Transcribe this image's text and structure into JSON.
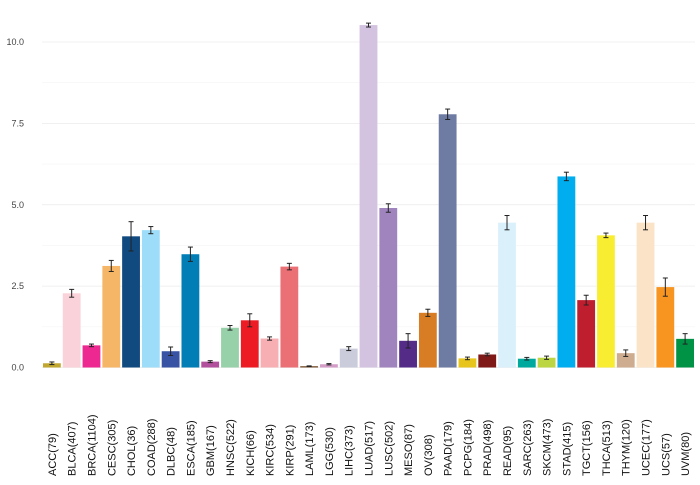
{
  "chart_data": {
    "type": "bar",
    "title": "",
    "xlabel": "",
    "ylabel": "",
    "ylim": [
      0,
      10.8
    ],
    "yticks": [
      0.0,
      2.5,
      5.0,
      7.5,
      10.0
    ],
    "ytick_labels": [
      "0.0",
      "2.5",
      "5.0",
      "7.5",
      "10.0"
    ],
    "grid": true,
    "legend": "none",
    "error_bars": true,
    "bars": [
      {
        "category": "ACC(79)",
        "value": 0.13,
        "err": 0.04,
        "color": "#C1A72F"
      },
      {
        "category": "BLCA(407)",
        "value": 2.28,
        "err": 0.12,
        "color": "#FAD2D9"
      },
      {
        "category": "BRCA(1104)",
        "value": 0.68,
        "err": 0.04,
        "color": "#ED2891"
      },
      {
        "category": "CESC(305)",
        "value": 3.12,
        "err": 0.17,
        "color": "#F6B667"
      },
      {
        "category": "CHOL(36)",
        "value": 4.03,
        "err": 0.45,
        "color": "#104A7F"
      },
      {
        "category": "COAD(288)",
        "value": 4.22,
        "err": 0.11,
        "color": "#9EDDF9"
      },
      {
        "category": "DLBC(48)",
        "value": 0.5,
        "err": 0.13,
        "color": "#3953A4"
      },
      {
        "category": "ESCA(185)",
        "value": 3.48,
        "err": 0.22,
        "color": "#007EB5"
      },
      {
        "category": "GBM(167)",
        "value": 0.18,
        "err": 0.03,
        "color": "#B2509E"
      },
      {
        "category": "HNSC(522)",
        "value": 1.22,
        "err": 0.07,
        "color": "#97D1A9"
      },
      {
        "category": "KICH(66)",
        "value": 1.45,
        "err": 0.2,
        "color": "#ED1C24"
      },
      {
        "category": "KIRC(534)",
        "value": 0.89,
        "err": 0.05,
        "color": "#F8AFB3"
      },
      {
        "category": "KIRP(291)",
        "value": 3.1,
        "err": 0.1,
        "color": "#EA7075"
      },
      {
        "category": "LAML(173)",
        "value": 0.04,
        "err": 0.01,
        "color": "#754C29"
      },
      {
        "category": "LGG(530)",
        "value": 0.1,
        "err": 0.02,
        "color": "#D49DC7"
      },
      {
        "category": "LIHC(373)",
        "value": 0.58,
        "err": 0.06,
        "color": "#CACCDB"
      },
      {
        "category": "LUAD(517)",
        "value": 10.52,
        "err": 0.06,
        "color": "#D3C3E0"
      },
      {
        "category": "LUSC(502)",
        "value": 4.9,
        "err": 0.13,
        "color": "#A084BD"
      },
      {
        "category": "MESO(87)",
        "value": 0.82,
        "err": 0.22,
        "color": "#542C88"
      },
      {
        "category": "OV(308)",
        "value": 1.68,
        "err": 0.11,
        "color": "#D97D25"
      },
      {
        "category": "PAAD(179)",
        "value": 7.78,
        "err": 0.16,
        "color": "#6E7BA2"
      },
      {
        "category": "PCPG(184)",
        "value": 0.28,
        "err": 0.04,
        "color": "#E8C51D"
      },
      {
        "category": "PRAD(498)",
        "value": 0.4,
        "err": 0.04,
        "color": "#7E1918"
      },
      {
        "category": "READ(95)",
        "value": 4.45,
        "err": 0.22,
        "color": "#DAF1FC"
      },
      {
        "category": "SARC(263)",
        "value": 0.27,
        "err": 0.04,
        "color": "#00A99D"
      },
      {
        "category": "SKCM(473)",
        "value": 0.3,
        "err": 0.05,
        "color": "#BBD642"
      },
      {
        "category": "STAD(415)",
        "value": 5.87,
        "err": 0.13,
        "color": "#00AEEF"
      },
      {
        "category": "TGCT(156)",
        "value": 2.07,
        "err": 0.15,
        "color": "#BE1E2D"
      },
      {
        "category": "THCA(513)",
        "value": 4.06,
        "err": 0.07,
        "color": "#F9ED32"
      },
      {
        "category": "THYM(120)",
        "value": 0.44,
        "err": 0.1,
        "color": "#CEAC8F"
      },
      {
        "category": "UCEC(177)",
        "value": 4.45,
        "err": 0.22,
        "color": "#FBE3C7"
      },
      {
        "category": "UCS(57)",
        "value": 2.47,
        "err": 0.28,
        "color": "#F89420"
      },
      {
        "category": "UVM(80)",
        "value": 0.88,
        "err": 0.16,
        "color": "#009245"
      }
    ]
  }
}
